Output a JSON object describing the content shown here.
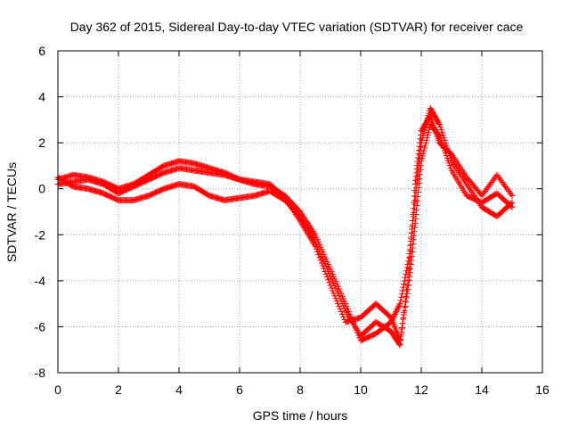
{
  "chart_data": {
    "type": "scatter",
    "title": "Day 362 of 2015, Sidereal Day-to-day VTEC variation (SDTVAR) for receiver cace",
    "xlabel": "GPS time / hours",
    "ylabel": "SDTVAR / TECUs",
    "xlim": [
      0,
      16
    ],
    "ylim": [
      -8,
      6
    ],
    "xticks": [
      "0",
      "2",
      "4",
      "6",
      "8",
      "10",
      "12",
      "14",
      "16"
    ],
    "yticks": [
      "-8",
      "-6",
      "-4",
      "-2",
      "0",
      "2",
      "4",
      "6"
    ],
    "grid": true,
    "marker": "+",
    "color": "#ff0000",
    "series": [
      {
        "x": [
          0,
          0.5,
          1,
          1.5,
          2,
          2.5,
          3,
          3.5,
          4,
          4.5,
          5,
          5.5,
          6,
          6.5,
          7,
          7.5,
          8,
          8.5,
          9,
          9.5,
          10,
          10.5,
          11,
          11.3,
          11.6,
          11.8,
          12,
          12.3,
          12.6,
          13,
          13.5,
          14,
          14.5,
          15
        ],
        "y": [
          0.4,
          0.6,
          0.5,
          0.3,
          0,
          0.2,
          0.6,
          1.0,
          1.2,
          1.1,
          0.9,
          0.7,
          0.4,
          0.2,
          0.1,
          -0.3,
          -1.0,
          -2.0,
          -3.5,
          -5.0,
          -6.6,
          -6.3,
          -5.8,
          -5.0,
          -3.0,
          -0.5,
          2.0,
          3.5,
          2.8,
          1.2,
          0.2,
          -0.8,
          -1.2,
          -0.6
        ]
      },
      {
        "x": [
          0,
          0.5,
          1,
          1.5,
          2,
          2.5,
          3,
          3.5,
          4,
          4.5,
          5,
          5.5,
          6,
          6.5,
          7,
          7.5,
          8,
          8.5,
          9,
          9.5,
          10,
          10.5,
          11,
          11.3,
          11.6,
          11.8,
          12,
          12.3,
          12.6,
          13,
          13.5,
          14,
          14.5,
          15
        ],
        "y": [
          0.2,
          0.3,
          0.4,
          0.2,
          -0.2,
          0.1,
          0.4,
          0.7,
          0.9,
          0.8,
          0.7,
          0.6,
          0.4,
          0.3,
          0.2,
          -0.4,
          -1.4,
          -2.5,
          -4.2,
          -5.8,
          -5.6,
          -5.0,
          -5.6,
          -6.6,
          -4.0,
          -1.5,
          1.2,
          2.8,
          2.3,
          0.8,
          -0.3,
          -0.6,
          -0.2,
          -0.8
        ]
      },
      {
        "x": [
          0,
          0.5,
          1,
          1.5,
          2,
          2.5,
          3,
          3.5,
          4,
          4.5,
          5,
          5.5,
          6,
          6.5,
          7,
          7.5,
          8,
          8.5,
          9,
          9.5,
          10,
          10.5,
          11,
          11.3,
          11.6,
          11.8,
          12,
          12.3,
          12.6,
          13,
          13.5,
          14,
          14.5,
          15
        ],
        "y": [
          0.5,
          0.1,
          0,
          -0.2,
          -0.5,
          -0.5,
          -0.3,
          0,
          0.2,
          0.1,
          -0.3,
          -0.5,
          -0.4,
          -0.3,
          -0.1,
          -0.5,
          -1.2,
          -2.3,
          -3.8,
          -5.3,
          -6.4,
          -5.8,
          -6.2,
          -6.8,
          -3.5,
          0.2,
          2.5,
          3.2,
          2.0,
          1.5,
          0.5,
          -0.3,
          0.6,
          -0.3
        ]
      }
    ]
  }
}
